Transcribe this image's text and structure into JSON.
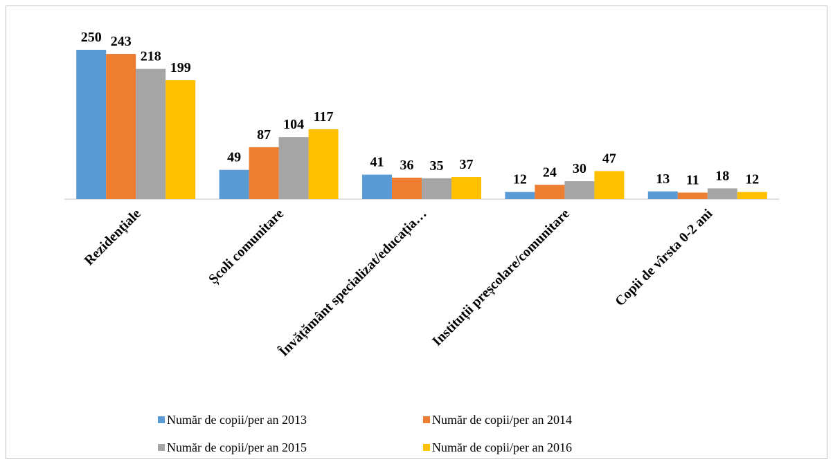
{
  "chart_data": {
    "type": "bar",
    "categories": [
      "Rezidențiale",
      "Școli comunitare",
      "Învățământ specializat/educația…",
      "Instituții preșcolare/comunitare",
      "Copii de vîrsta 0-2 ani"
    ],
    "series": [
      {
        "name": "Număr de copii/per an 2013",
        "color": "#5b9bd5",
        "values": [
          250,
          49,
          41,
          12,
          13
        ]
      },
      {
        "name": "Număr de copii/per an 2014",
        "color": "#ed7d31",
        "values": [
          243,
          87,
          36,
          24,
          11
        ]
      },
      {
        "name": "Număr de copii/per an 2015",
        "color": "#a5a5a5",
        "values": [
          218,
          104,
          35,
          30,
          18
        ]
      },
      {
        "name": "Număr de copii/per an 2016",
        "color": "#ffc000",
        "values": [
          199,
          117,
          37,
          47,
          12
        ]
      }
    ],
    "legend": "bottom"
  }
}
